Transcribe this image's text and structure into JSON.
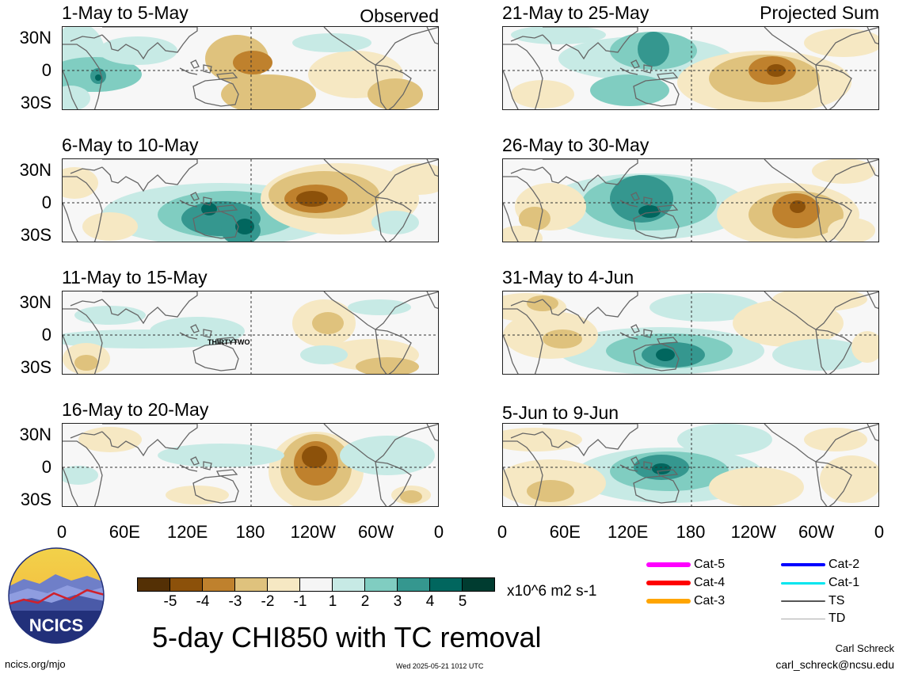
{
  "panels": [
    {
      "title": "1-May to 5-May",
      "corner": "Observed",
      "label": ""
    },
    {
      "title": "6-May to 10-May",
      "corner": "",
      "label": ""
    },
    {
      "title": "11-May to 15-May",
      "corner": "",
      "label": "THIRTYTWO"
    },
    {
      "title": "16-May to 20-May",
      "corner": "",
      "label": ""
    },
    {
      "title": "21-May to 25-May",
      "corner": "Projected Sum",
      "label": ""
    },
    {
      "title": "26-May to 30-May",
      "corner": "",
      "label": ""
    },
    {
      "title": "31-May to 4-Jun",
      "corner": "",
      "label": ""
    },
    {
      "title": "5-Jun to 9-Jun",
      "corner": "",
      "label": ""
    }
  ],
  "y_ticks": [
    "30N",
    "0",
    "30S"
  ],
  "x_ticks": [
    "0",
    "60E",
    "120E",
    "180",
    "120W",
    "60W",
    "0"
  ],
  "colorbar": {
    "labels": [
      "-5",
      "-4",
      "-3",
      "-2",
      "-1",
      "1",
      "2",
      "3",
      "4",
      "5"
    ],
    "colors": [
      "#543005",
      "#8c510a",
      "#bf812d",
      "#dfc27d",
      "#f6e8c3",
      "#f5f5f5",
      "#c7eae5",
      "#80cdc1",
      "#35978f",
      "#01665e",
      "#003c30"
    ],
    "units": "x10^6 m2 s-1"
  },
  "legend": [
    {
      "label": "Cat-5",
      "color": "#ff00ff"
    },
    {
      "label": "Cat-4",
      "color": "#ff0000"
    },
    {
      "label": "Cat-3",
      "color": "#ffa500"
    },
    {
      "label": "Cat-2",
      "color": "#0000ff"
    },
    {
      "label": "Cat-1",
      "color": "#00e5ee"
    },
    {
      "label": "TS",
      "color": "#555555"
    },
    {
      "label": "TD",
      "color": "#aaaaaa"
    }
  ],
  "main_title": "5-day CHI850 with TC removal",
  "logo_text": "NCICS",
  "footer": {
    "left": "ncics.org/mjo",
    "center": "Wed 2025-05-21 1012 UTC",
    "author": "Carl Schreck",
    "email": "carl_schreck@ncsu.edu"
  }
}
